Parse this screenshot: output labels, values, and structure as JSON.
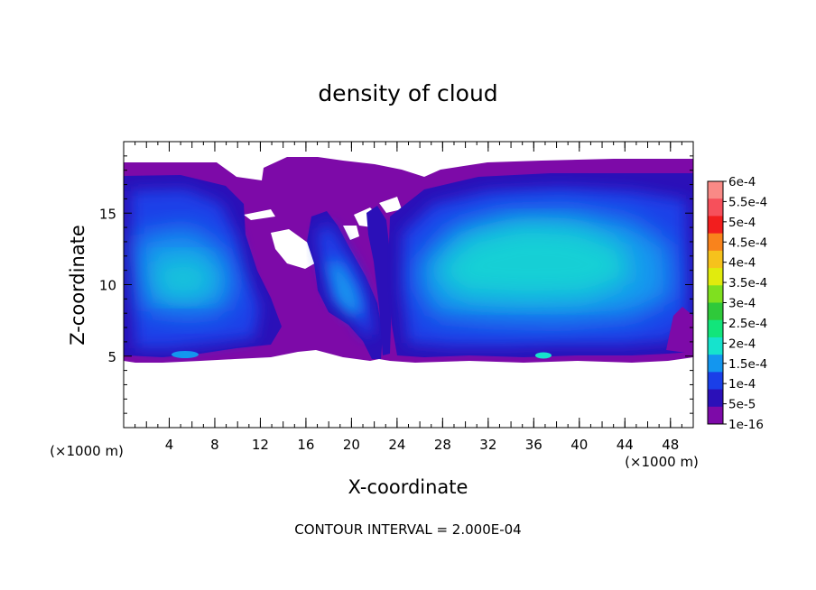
{
  "chart_data": {
    "type": "heatmap",
    "title": "density of cloud",
    "xlabel": "X-coordinate",
    "ylabel": "Z-coordinate",
    "x_unit": "(×1000 m)",
    "xlim": [
      0,
      50
    ],
    "ylim": [
      0,
      20
    ],
    "x_ticks": [
      4,
      8,
      12,
      16,
      20,
      24,
      28,
      32,
      36,
      40,
      44,
      48
    ],
    "y_ticks": [
      5,
      10,
      15
    ],
    "footer": "CONTOUR INTERVAL = 2.000E-04",
    "colorbar": {
      "labels": [
        "6e-4",
        "5.5e-4",
        "5e-4",
        "4.5e-4",
        "4e-4",
        "3.5e-4",
        "3e-4",
        "2.5e-4",
        "2e-4",
        "1.5e-4",
        "1e-4",
        "5e-5",
        "1e-16"
      ],
      "colors": [
        "#f98a86",
        "#f6505b",
        "#f21e1e",
        "#f9831c",
        "#f6c21c",
        "#e1eb0d",
        "#7fe01f",
        "#2fc93a",
        "#12e57b",
        "#16e3cd",
        "#1396ef",
        "#1a3fe8",
        "#2b10b8",
        "#7d0aa8"
      ]
    },
    "regions": {
      "background_level": "1e-16",
      "left_cloud_peak": "1.5e-4",
      "central_plume_peak": "1.5e-4",
      "right_cloud_peak": "1.5e-4"
    }
  }
}
